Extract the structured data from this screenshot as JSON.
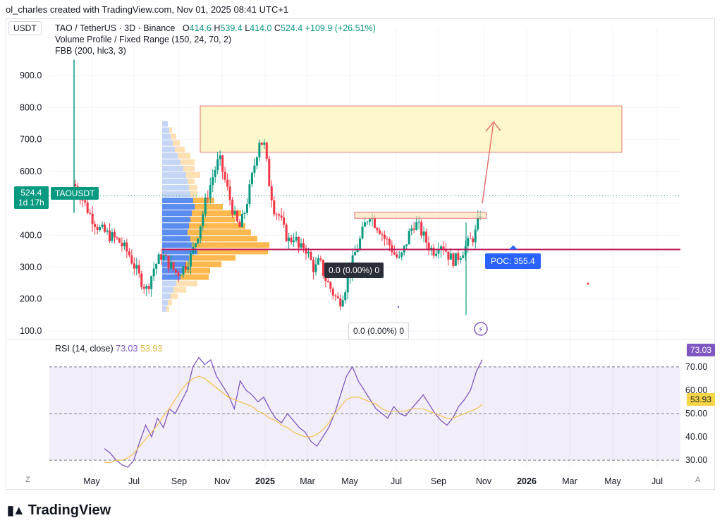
{
  "header": {
    "credit": "ol_charles created with TradingView.com, Nov 01, 2025 08:41 UTC+1"
  },
  "currency": "USDT",
  "legend": {
    "symbol": "TAO / TetherUS · 3D · Binance",
    "o_label": "O",
    "o": "414.6",
    "h_label": "H",
    "h": "539.4",
    "l_label": "L",
    "l": "414.0",
    "c_label": "C",
    "c": "524.4",
    "change": "+109.9 (+26.51%)",
    "indicator1": "Volume Profile / Fixed Range (150, 24, 70, 2)",
    "indicator2": "FBB (200, hlc3, 3)"
  },
  "price_tag": {
    "price": "524.4",
    "countdown": "1d 17h",
    "symbol": "TAOUSDT"
  },
  "poc_label": "POC: 355.4",
  "fib_label": "0.0 (0.00%) 0",
  "fib_label2": "0.0 (0.00%) 0",
  "rsi": {
    "label": "RSI (14, close)",
    "value": "73.03",
    "ma": "53.93"
  },
  "footer": {
    "brand": "TradingView",
    "z": "Z",
    "a": "A"
  },
  "colors": {
    "up": "#089981",
    "down": "#f23645",
    "rsi": "#7e57c2",
    "rsi_ma": "#f0c14b",
    "poc": "#c2185b",
    "target_zone": "#fff7cc"
  },
  "chart_data": [
    {
      "type": "candlestick",
      "title": "TAO / TetherUS · 3D · Binance",
      "y_ticks": [
        "100.0",
        "200.0",
        "300.0",
        "400.0",
        "500.0",
        "600.0",
        "700.0",
        "800.0",
        "900.0"
      ],
      "ylim": [
        80,
        960
      ],
      "x_ticks": [
        "May",
        "Jul",
        "Sep",
        "Nov",
        "2025",
        "Mar",
        "May",
        "Jul",
        "Sep",
        "Nov",
        "2026",
        "Mar",
        "May",
        "Jul"
      ],
      "x_ticks_bold": [
        "2025",
        "2026"
      ],
      "close_path": [
        [
          0,
          560
        ],
        [
          3,
          520
        ],
        [
          6,
          470
        ],
        [
          10,
          420
        ],
        [
          14,
          400
        ],
        [
          18,
          380
        ],
        [
          22,
          340
        ],
        [
          26,
          270
        ],
        [
          29,
          230
        ],
        [
          32,
          300
        ],
        [
          35,
          340
        ],
        [
          38,
          310
        ],
        [
          41,
          280
        ],
        [
          44,
          300
        ],
        [
          47,
          340
        ],
        [
          50,
          420
        ],
        [
          53,
          520
        ],
        [
          56,
          600
        ],
        [
          58,
          640
        ],
        [
          60,
          580
        ],
        [
          62,
          520
        ],
        [
          64,
          460
        ],
        [
          66,
          420
        ],
        [
          68,
          470
        ],
        [
          70,
          540
        ],
        [
          72,
          620
        ],
        [
          74,
          700
        ],
        [
          76,
          680
        ],
        [
          78,
          560
        ],
        [
          80,
          480
        ],
        [
          82,
          460
        ],
        [
          84,
          410
        ],
        [
          86,
          380
        ],
        [
          88,
          400
        ],
        [
          90,
          350
        ],
        [
          92,
          370
        ],
        [
          94,
          330
        ],
        [
          96,
          290
        ],
        [
          98,
          320
        ],
        [
          100,
          270
        ],
        [
          102,
          240
        ],
        [
          104,
          210
        ],
        [
          106,
          190
        ],
        [
          108,
          230
        ],
        [
          110,
          280
        ],
        [
          112,
          340
        ],
        [
          114,
          380
        ],
        [
          116,
          430
        ],
        [
          118,
          470
        ],
        [
          120,
          440
        ],
        [
          122,
          420
        ],
        [
          124,
          390
        ],
        [
          126,
          370
        ],
        [
          128,
          340
        ],
        [
          130,
          320
        ],
        [
          132,
          360
        ],
        [
          134,
          410
        ],
        [
          136,
          440
        ],
        [
          138,
          420
        ],
        [
          140,
          390
        ],
        [
          142,
          360
        ],
        [
          144,
          350
        ],
        [
          146,
          380
        ],
        [
          148,
          360
        ],
        [
          150,
          330
        ],
        [
          152,
          320
        ],
        [
          154,
          340
        ],
        [
          156,
          360
        ],
        [
          158,
          380
        ],
        [
          160,
          400
        ],
        [
          161,
          430
        ],
        [
          162,
          460
        ],
        [
          163,
          524.4
        ]
      ],
      "last_close": 524.4,
      "poc": 355.4,
      "target_zone": [
        660,
        805
      ],
      "resistance_band": [
        453,
        472
      ]
    },
    {
      "type": "line",
      "title": "RSI (14, close)",
      "y_ticks": [
        "30.00",
        "40.00",
        "50.00",
        "60.00",
        "70.00"
      ],
      "ylim": [
        27,
        76
      ],
      "levels": [
        30,
        50,
        70
      ],
      "series": [
        {
          "name": "RSI",
          "values": [
            35,
            33,
            30,
            28,
            27,
            30,
            38,
            45,
            40,
            48,
            44,
            52,
            50,
            55,
            60,
            70,
            74,
            71,
            73,
            66,
            62,
            58,
            52,
            64,
            60,
            58,
            55,
            57,
            52,
            48,
            46,
            50,
            47,
            44,
            42,
            38,
            36,
            40,
            44,
            50,
            58,
            66,
            70,
            64,
            60,
            56,
            52,
            50,
            48,
            53,
            50,
            49,
            52,
            55,
            58,
            54,
            50,
            47,
            45,
            48,
            53,
            56,
            60,
            68,
            73.03
          ]
        },
        {
          "name": "MA",
          "values": [
            29,
            29,
            30,
            30,
            31,
            33,
            36,
            39,
            42,
            45,
            49,
            52,
            56,
            60,
            63,
            65,
            66,
            65,
            63,
            61,
            59,
            57,
            56,
            55,
            54,
            53,
            51,
            50,
            48,
            47,
            45,
            44,
            42,
            41,
            40,
            40,
            41,
            43,
            46,
            50,
            53,
            56,
            57,
            57,
            56,
            55,
            54,
            52,
            51,
            51,
            51,
            51,
            52,
            52,
            52,
            51,
            50,
            49,
            48,
            48,
            49,
            50,
            51,
            52,
            53.93
          ]
        }
      ]
    }
  ]
}
